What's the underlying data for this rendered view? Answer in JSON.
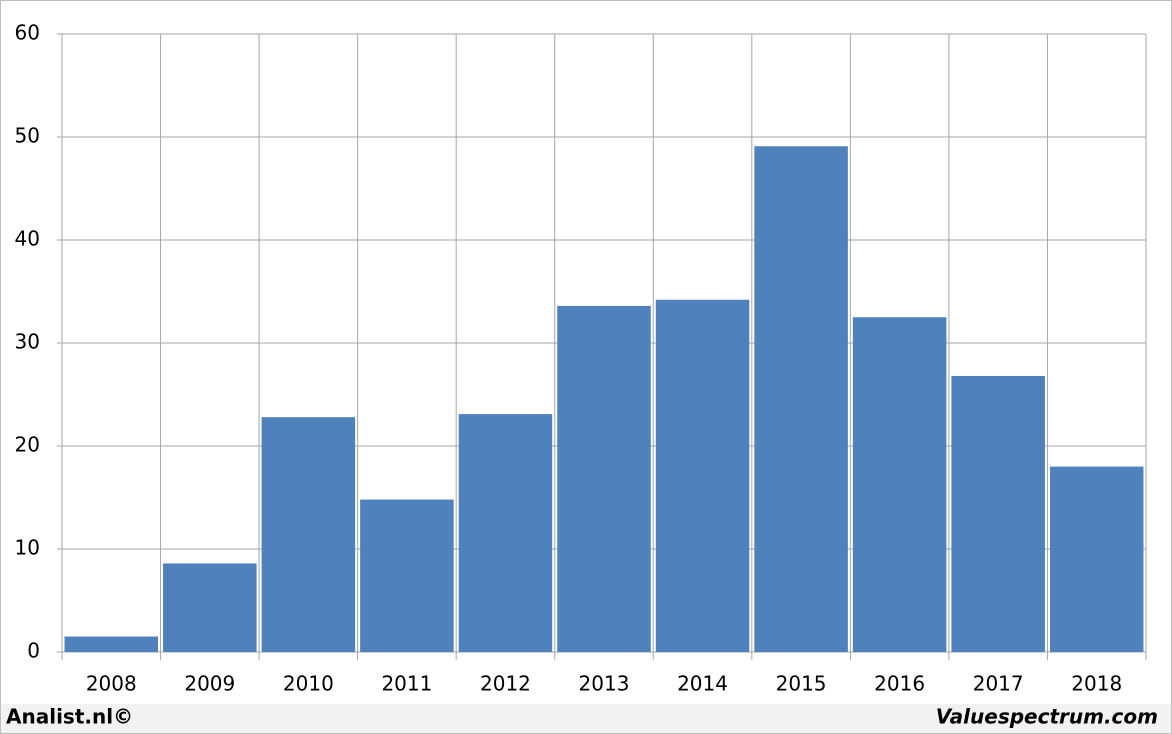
{
  "chart_data": {
    "type": "bar",
    "categories": [
      "2008",
      "2009",
      "2010",
      "2011",
      "2012",
      "2013",
      "2014",
      "2015",
      "2016",
      "2017",
      "2018"
    ],
    "values": [
      1.5,
      8.6,
      22.8,
      14.8,
      23.1,
      33.6,
      34.2,
      49.1,
      32.5,
      26.8,
      18.0
    ],
    "color": "#4f81bd",
    "ylim": [
      0,
      60
    ],
    "yticks": [
      0,
      10,
      20,
      30,
      40,
      50,
      60
    ],
    "grid": true,
    "footer_left": "Analist.nl©",
    "footer_right": "Valuespectrum.com"
  }
}
